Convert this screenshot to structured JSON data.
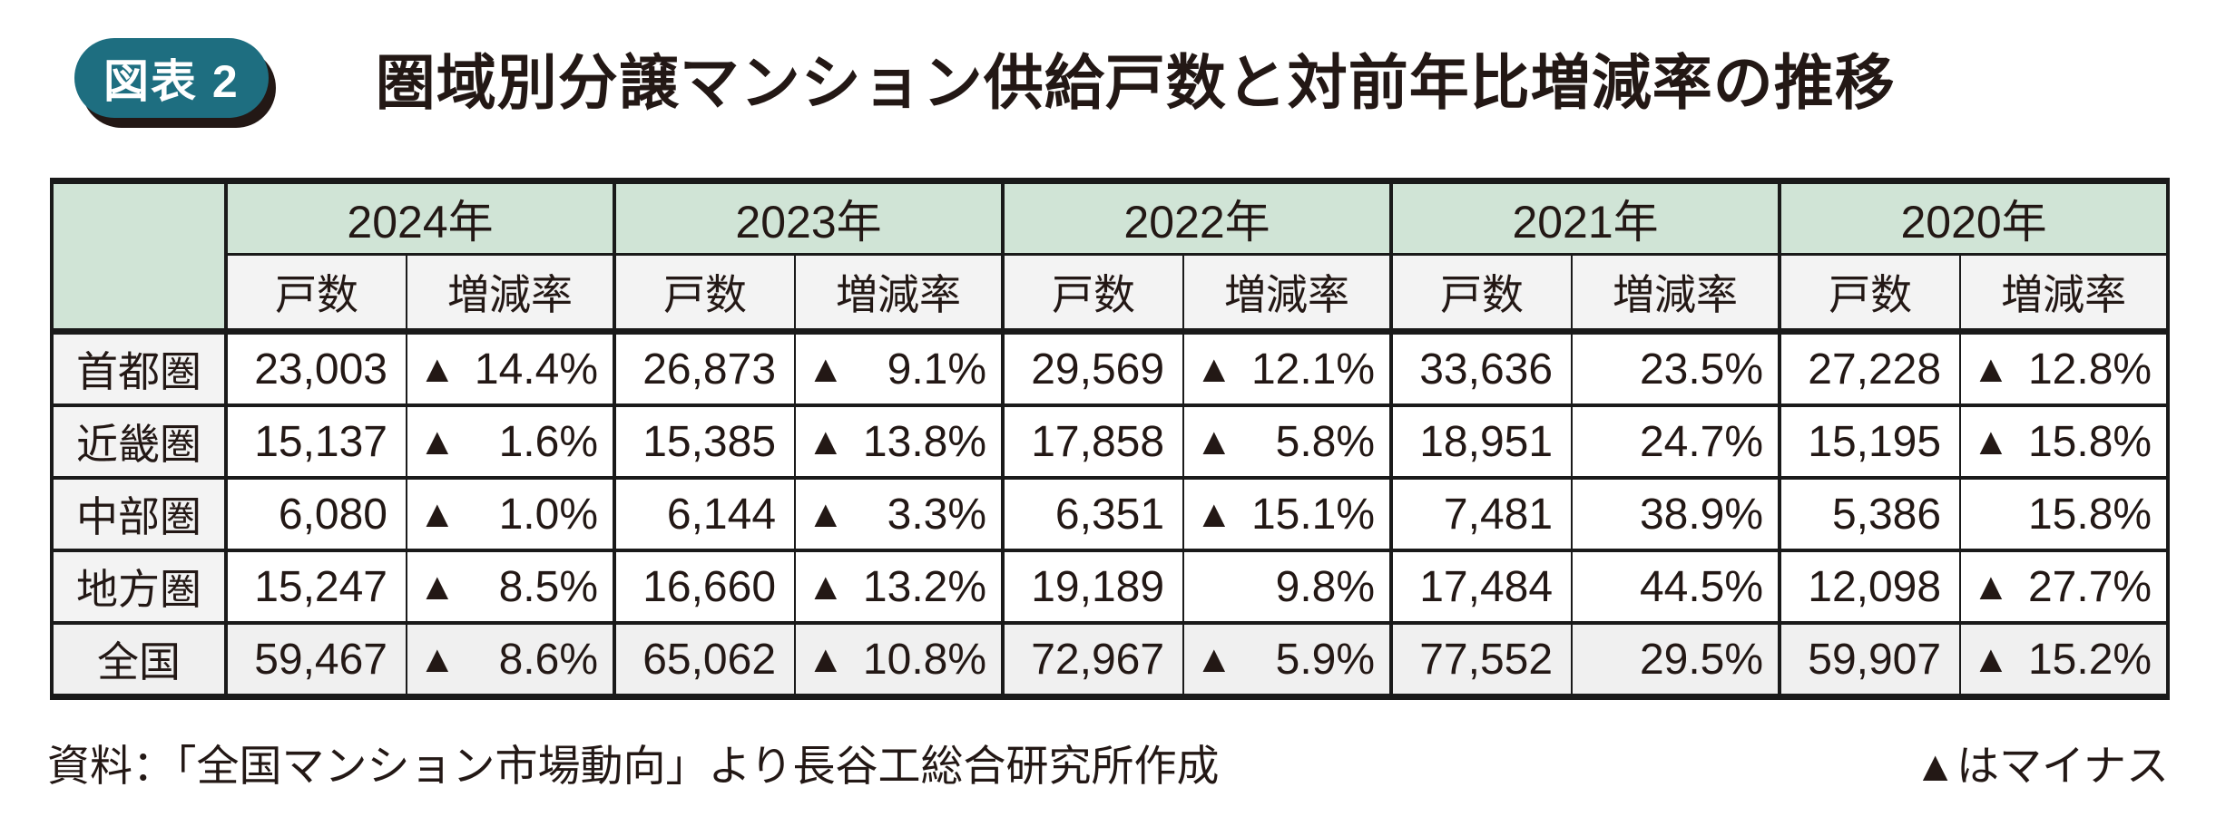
{
  "header": {
    "badge_label": "図表 2",
    "title": "圏域別分譲マンション供給戸数と対前年比増減率の推移"
  },
  "table": {
    "col_headers": [
      "2024年",
      "2023年",
      "2022年",
      "2021年",
      "2020年"
    ],
    "sub_headers": {
      "units": "戸数",
      "rate": "増減率"
    },
    "rows": [
      {
        "label": "首都圏",
        "values": [
          {
            "units": "23,003",
            "minus": "▲",
            "rate": "14.4%"
          },
          {
            "units": "26,873",
            "minus": "▲",
            "rate": "9.1%"
          },
          {
            "units": "29,569",
            "minus": "▲",
            "rate": "12.1%"
          },
          {
            "units": "33,636",
            "minus": "",
            "rate": "23.5%"
          },
          {
            "units": "27,228",
            "minus": "▲",
            "rate": "12.8%"
          }
        ]
      },
      {
        "label": "近畿圏",
        "values": [
          {
            "units": "15,137",
            "minus": "▲",
            "rate": "1.6%"
          },
          {
            "units": "15,385",
            "minus": "▲",
            "rate": "13.8%"
          },
          {
            "units": "17,858",
            "minus": "▲",
            "rate": "5.8%"
          },
          {
            "units": "18,951",
            "minus": "",
            "rate": "24.7%"
          },
          {
            "units": "15,195",
            "minus": "▲",
            "rate": "15.8%"
          }
        ]
      },
      {
        "label": "中部圏",
        "values": [
          {
            "units": "6,080",
            "minus": "▲",
            "rate": "1.0%"
          },
          {
            "units": "6,144",
            "minus": "▲",
            "rate": "3.3%"
          },
          {
            "units": "6,351",
            "minus": "▲",
            "rate": "15.1%"
          },
          {
            "units": "7,481",
            "minus": "",
            "rate": "38.9%"
          },
          {
            "units": "5,386",
            "minus": "",
            "rate": "15.8%"
          }
        ]
      },
      {
        "label": "地方圏",
        "values": [
          {
            "units": "15,247",
            "minus": "▲",
            "rate": "8.5%"
          },
          {
            "units": "16,660",
            "minus": "▲",
            "rate": "13.2%"
          },
          {
            "units": "19,189",
            "minus": "",
            "rate": "9.8%"
          },
          {
            "units": "17,484",
            "minus": "",
            "rate": "44.5%"
          },
          {
            "units": "12,098",
            "minus": "▲",
            "rate": "27.7%"
          }
        ]
      },
      {
        "label": "全国",
        "values": [
          {
            "units": "59,467",
            "minus": "▲",
            "rate": "8.6%"
          },
          {
            "units": "65,062",
            "minus": "▲",
            "rate": "10.8%"
          },
          {
            "units": "72,967",
            "minus": "▲",
            "rate": "5.9%"
          },
          {
            "units": "77,552",
            "minus": "",
            "rate": "29.5%"
          },
          {
            "units": "59,907",
            "minus": "▲",
            "rate": "15.2%"
          }
        ]
      }
    ]
  },
  "footer": {
    "source": "資料：「全国マンション市場動向」より長谷工総合研究所作成",
    "legend": "▲はマイナス"
  },
  "colors": {
    "badge_bg": "#1e6e80",
    "badge_text": "#ffffff",
    "header_green": "#d0e4d6",
    "subheader_gray": "#f3f3f3",
    "total_row_gray": "#f0f0f0",
    "border": "#1a1a1a",
    "text": "#231815"
  },
  "chart_data": {
    "type": "table",
    "title": "圏域別分譲マンション供給戸数と対前年比増減率の推移",
    "columns_years": [
      "2024年",
      "2023年",
      "2022年",
      "2021年",
      "2020年"
    ],
    "measures": [
      "戸数",
      "増減率"
    ],
    "rows": [
      {
        "region": "首都圏",
        "units": [
          23003,
          26873,
          29569,
          33636,
          27228
        ],
        "yoy_pct": [
          -14.4,
          -9.1,
          -12.1,
          23.5,
          -12.8
        ]
      },
      {
        "region": "近畿圏",
        "units": [
          15137,
          15385,
          17858,
          18951,
          15195
        ],
        "yoy_pct": [
          -1.6,
          -13.8,
          -5.8,
          24.7,
          -15.8
        ]
      },
      {
        "region": "中部圏",
        "units": [
          6080,
          6144,
          6351,
          7481,
          5386
        ],
        "yoy_pct": [
          -1.0,
          -3.3,
          -15.1,
          38.9,
          15.8
        ]
      },
      {
        "region": "地方圏",
        "units": [
          15247,
          16660,
          19189,
          17484,
          12098
        ],
        "yoy_pct": [
          -8.5,
          -13.2,
          9.8,
          44.5,
          -27.7
        ]
      },
      {
        "region": "全国",
        "units": [
          59467,
          65062,
          72967,
          77552,
          59907
        ],
        "yoy_pct": [
          -8.6,
          -10.8,
          -5.9,
          29.5,
          -15.2
        ]
      }
    ],
    "legend_note": "▲はマイナス"
  }
}
